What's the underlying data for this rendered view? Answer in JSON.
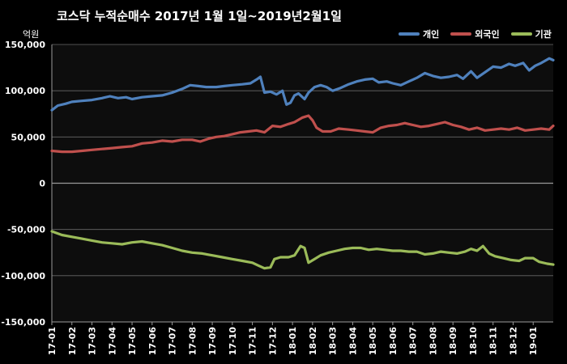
{
  "chart_data": {
    "type": "line",
    "title": "코스닥  누적순매수 2017년 1월 1일~2019년2월1일",
    "unit_label": "억원",
    "ylim": [
      -150000,
      150000
    ],
    "yticks": [
      "-150,000",
      "-100,000",
      "-50,000",
      "0",
      "50,000",
      "100,000",
      "150,000"
    ],
    "ytick_values": [
      -150000,
      -100000,
      -50000,
      0,
      50000,
      100000,
      150000
    ],
    "categories": [
      "17-01",
      "17-02",
      "17-03",
      "17-04",
      "17-05",
      "17-06",
      "17-07",
      "17-08",
      "17-09",
      "17-10",
      "17-11",
      "17-12",
      "18-01",
      "18-02",
      "18-03",
      "18-04",
      "18-05",
      "18-06",
      "18-07",
      "18-08",
      "18-09",
      "18-10",
      "18-11",
      "18-12",
      "19-01"
    ],
    "grid": "horizontal",
    "legend_position": "top-right",
    "series": [
      {
        "name": "개인",
        "color": "#4f81bd",
        "values": [
          [
            0,
            79000
          ],
          [
            0.3,
            84000
          ],
          [
            0.7,
            86000
          ],
          [
            1,
            88000
          ],
          [
            1.5,
            89000
          ],
          [
            2,
            90000
          ],
          [
            2.5,
            92000
          ],
          [
            2.9,
            94000
          ],
          [
            3.3,
            92000
          ],
          [
            3.7,
            93000
          ],
          [
            4,
            91000
          ],
          [
            4.5,
            93000
          ],
          [
            5,
            94000
          ],
          [
            5.5,
            95000
          ],
          [
            6,
            98000
          ],
          [
            6.5,
            102000
          ],
          [
            6.9,
            106000
          ],
          [
            7.3,
            105000
          ],
          [
            7.7,
            104000
          ],
          [
            8.2,
            104000
          ],
          [
            8.6,
            105000
          ],
          [
            9,
            106000
          ],
          [
            9.5,
            107000
          ],
          [
            9.9,
            108000
          ],
          [
            10.2,
            112000
          ],
          [
            10.4,
            115000
          ],
          [
            10.6,
            98000
          ],
          [
            10.9,
            99000
          ],
          [
            11.2,
            96000
          ],
          [
            11.5,
            100000
          ],
          [
            11.7,
            85000
          ],
          [
            11.9,
            87000
          ],
          [
            12.1,
            95000
          ],
          [
            12.3,
            97000
          ],
          [
            12.6,
            91000
          ],
          [
            12.8,
            98000
          ],
          [
            13.1,
            104000
          ],
          [
            13.4,
            106000
          ],
          [
            13.7,
            104000
          ],
          [
            14.0,
            100000
          ],
          [
            14.4,
            103000
          ],
          [
            14.8,
            107000
          ],
          [
            15.2,
            110000
          ],
          [
            15.6,
            112000
          ],
          [
            16.0,
            113000
          ],
          [
            16.3,
            109000
          ],
          [
            16.7,
            110000
          ],
          [
            17.0,
            108000
          ],
          [
            17.4,
            106000
          ],
          [
            17.8,
            110000
          ],
          [
            18.2,
            114000
          ],
          [
            18.6,
            119000
          ],
          [
            19.0,
            116000
          ],
          [
            19.4,
            114000
          ],
          [
            19.8,
            115000
          ],
          [
            20.2,
            117000
          ],
          [
            20.5,
            113000
          ],
          [
            20.9,
            121000
          ],
          [
            21.2,
            114000
          ],
          [
            21.6,
            120000
          ],
          [
            22.0,
            126000
          ],
          [
            22.4,
            125000
          ],
          [
            22.8,
            129000
          ],
          [
            23.1,
            127000
          ],
          [
            23.5,
            130000
          ],
          [
            23.8,
            122000
          ],
          [
            24.1,
            127000
          ],
          [
            24.4,
            130000
          ],
          [
            24.8,
            135000
          ],
          [
            25.0,
            133000
          ]
        ]
      },
      {
        "name": "외국인",
        "color": "#c0504d",
        "values": [
          [
            0,
            35000
          ],
          [
            0.5,
            34000
          ],
          [
            1,
            34000
          ],
          [
            1.5,
            35000
          ],
          [
            2,
            36000
          ],
          [
            2.5,
            37000
          ],
          [
            3,
            38000
          ],
          [
            3.5,
            39000
          ],
          [
            4,
            40000
          ],
          [
            4.5,
            43000
          ],
          [
            5,
            44000
          ],
          [
            5.5,
            46000
          ],
          [
            6,
            45000
          ],
          [
            6.5,
            47000
          ],
          [
            7,
            47000
          ],
          [
            7.4,
            45000
          ],
          [
            7.8,
            48000
          ],
          [
            8.2,
            50000
          ],
          [
            8.6,
            51000
          ],
          [
            9,
            53000
          ],
          [
            9.4,
            55000
          ],
          [
            9.8,
            56000
          ],
          [
            10.2,
            57000
          ],
          [
            10.6,
            55000
          ],
          [
            11.0,
            62000
          ],
          [
            11.4,
            61000
          ],
          [
            11.8,
            64000
          ],
          [
            12.1,
            66000
          ],
          [
            12.5,
            71000
          ],
          [
            12.8,
            73000
          ],
          [
            13.0,
            68000
          ],
          [
            13.2,
            60000
          ],
          [
            13.5,
            56000
          ],
          [
            13.9,
            56000
          ],
          [
            14.3,
            59000
          ],
          [
            14.8,
            58000
          ],
          [
            15.2,
            57000
          ],
          [
            15.6,
            56000
          ],
          [
            16.0,
            55000
          ],
          [
            16.4,
            60000
          ],
          [
            16.8,
            62000
          ],
          [
            17.2,
            63000
          ],
          [
            17.6,
            65000
          ],
          [
            18.0,
            63000
          ],
          [
            18.4,
            61000
          ],
          [
            18.8,
            62000
          ],
          [
            19.2,
            64000
          ],
          [
            19.6,
            66000
          ],
          [
            20.0,
            63000
          ],
          [
            20.4,
            61000
          ],
          [
            20.8,
            58000
          ],
          [
            21.2,
            60000
          ],
          [
            21.6,
            57000
          ],
          [
            22.0,
            58000
          ],
          [
            22.4,
            59000
          ],
          [
            22.8,
            58000
          ],
          [
            23.2,
            60000
          ],
          [
            23.6,
            57000
          ],
          [
            24.0,
            58000
          ],
          [
            24.4,
            59000
          ],
          [
            24.8,
            58000
          ],
          [
            25.0,
            62000
          ]
        ]
      },
      {
        "name": "기관",
        "color": "#9bbb59",
        "values": [
          [
            0,
            -52000
          ],
          [
            0.5,
            -56000
          ],
          [
            1,
            -58000
          ],
          [
            1.5,
            -60000
          ],
          [
            2,
            -62000
          ],
          [
            2.5,
            -64000
          ],
          [
            3,
            -65000
          ],
          [
            3.5,
            -66000
          ],
          [
            4,
            -64000
          ],
          [
            4.5,
            -63000
          ],
          [
            5,
            -65000
          ],
          [
            5.5,
            -67000
          ],
          [
            6,
            -70000
          ],
          [
            6.5,
            -73000
          ],
          [
            7,
            -75000
          ],
          [
            7.5,
            -76000
          ],
          [
            8,
            -78000
          ],
          [
            8.5,
            -80000
          ],
          [
            9,
            -82000
          ],
          [
            9.5,
            -84000
          ],
          [
            10,
            -86000
          ],
          [
            10.3,
            -89000
          ],
          [
            10.6,
            -92000
          ],
          [
            10.9,
            -91000
          ],
          [
            11.1,
            -82000
          ],
          [
            11.4,
            -80000
          ],
          [
            11.8,
            -80000
          ],
          [
            12.1,
            -78000
          ],
          [
            12.4,
            -68000
          ],
          [
            12.6,
            -70000
          ],
          [
            12.8,
            -86000
          ],
          [
            13.1,
            -82000
          ],
          [
            13.4,
            -78000
          ],
          [
            13.8,
            -75000
          ],
          [
            14.2,
            -73000
          ],
          [
            14.6,
            -71000
          ],
          [
            15.0,
            -70000
          ],
          [
            15.4,
            -70000
          ],
          [
            15.8,
            -72000
          ],
          [
            16.2,
            -71000
          ],
          [
            16.6,
            -72000
          ],
          [
            17.0,
            -73000
          ],
          [
            17.4,
            -73000
          ],
          [
            17.8,
            -74000
          ],
          [
            18.2,
            -74000
          ],
          [
            18.6,
            -77000
          ],
          [
            19.0,
            -76000
          ],
          [
            19.4,
            -74000
          ],
          [
            19.8,
            -75000
          ],
          [
            20.2,
            -76000
          ],
          [
            20.6,
            -74000
          ],
          [
            20.9,
            -71000
          ],
          [
            21.2,
            -73000
          ],
          [
            21.5,
            -68000
          ],
          [
            21.8,
            -76000
          ],
          [
            22.1,
            -79000
          ],
          [
            22.5,
            -81000
          ],
          [
            22.9,
            -83000
          ],
          [
            23.3,
            -84000
          ],
          [
            23.6,
            -81000
          ],
          [
            24.0,
            -81000
          ],
          [
            24.3,
            -85000
          ],
          [
            24.7,
            -87000
          ],
          [
            25.0,
            -88000
          ]
        ]
      }
    ]
  }
}
